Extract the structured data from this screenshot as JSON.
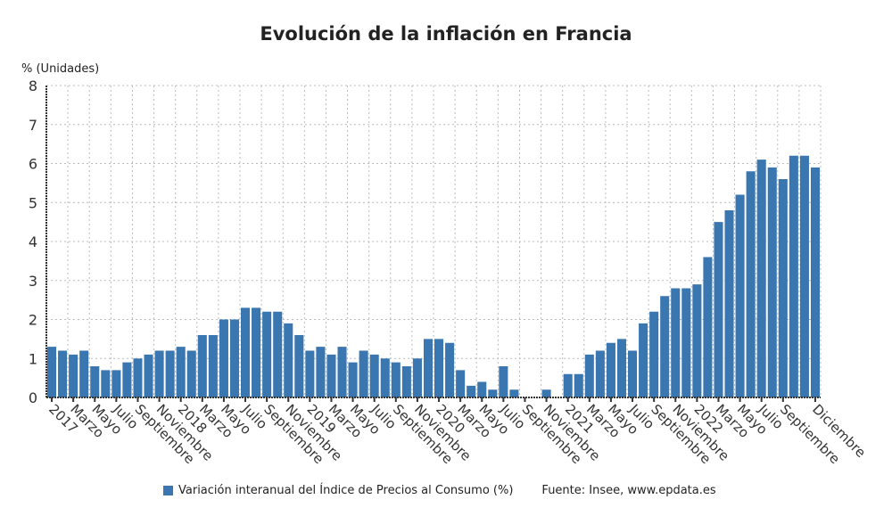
{
  "chart_data": {
    "type": "bar",
    "title": "Evolución de la inflación en Francia",
    "ylabel": "% (Unidades)",
    "ylim": [
      0,
      8
    ],
    "yticks": [
      0,
      1,
      2,
      3,
      4,
      5,
      6,
      7,
      8
    ],
    "grid": true,
    "color": "#3a76b0",
    "series": [
      {
        "name": "Variación interanual del Índice de Precios al Consumo (%)",
        "values": [
          1.3,
          1.2,
          1.1,
          1.2,
          0.8,
          0.7,
          0.7,
          0.9,
          1.0,
          1.1,
          1.2,
          1.2,
          1.3,
          1.2,
          1.6,
          1.6,
          2.0,
          2.0,
          2.3,
          2.3,
          2.2,
          2.2,
          1.9,
          1.6,
          1.2,
          1.3,
          1.1,
          1.3,
          0.9,
          1.2,
          1.1,
          1.0,
          0.9,
          0.8,
          1.0,
          1.5,
          1.5,
          1.4,
          0.7,
          0.3,
          0.4,
          0.2,
          0.8,
          0.2,
          0.0,
          0.0,
          0.2,
          0.0,
          0.6,
          0.6,
          1.1,
          1.2,
          1.4,
          1.5,
          1.2,
          1.9,
          2.2,
          2.6,
          2.8,
          2.8,
          2.9,
          3.6,
          4.5,
          4.8,
          5.2,
          5.8,
          6.1,
          5.9,
          5.6,
          6.2,
          6.2,
          5.9
        ]
      }
    ],
    "x_tick_labels": [
      {
        "index": 0,
        "label": "2017"
      },
      {
        "index": 2,
        "label": "Marzo"
      },
      {
        "index": 4,
        "label": "Mayo"
      },
      {
        "index": 6,
        "label": "Julio"
      },
      {
        "index": 8,
        "label": "Septiembre"
      },
      {
        "index": 10,
        "label": "Noviembre"
      },
      {
        "index": 12,
        "label": "2018"
      },
      {
        "index": 14,
        "label": "Marzo"
      },
      {
        "index": 16,
        "label": "Mayo"
      },
      {
        "index": 18,
        "label": "Julio"
      },
      {
        "index": 20,
        "label": "Septiembre"
      },
      {
        "index": 22,
        "label": "Noviembre"
      },
      {
        "index": 24,
        "label": "2019"
      },
      {
        "index": 26,
        "label": "Marzo"
      },
      {
        "index": 28,
        "label": "Mayo"
      },
      {
        "index": 30,
        "label": "Julio"
      },
      {
        "index": 32,
        "label": "Septiembre"
      },
      {
        "index": 34,
        "label": "Noviembre"
      },
      {
        "index": 36,
        "label": "2020"
      },
      {
        "index": 38,
        "label": "Marzo"
      },
      {
        "index": 40,
        "label": "Mayo"
      },
      {
        "index": 42,
        "label": "Julio"
      },
      {
        "index": 44,
        "label": "Septiembre"
      },
      {
        "index": 46,
        "label": "Noviembre"
      },
      {
        "index": 48,
        "label": "2021"
      },
      {
        "index": 50,
        "label": "Marzo"
      },
      {
        "index": 52,
        "label": "Mayo"
      },
      {
        "index": 54,
        "label": "Julio"
      },
      {
        "index": 56,
        "label": "Septiembre"
      },
      {
        "index": 58,
        "label": "Noviembre"
      },
      {
        "index": 60,
        "label": "2022"
      },
      {
        "index": 62,
        "label": "Marzo"
      },
      {
        "index": 64,
        "label": "Mayo"
      },
      {
        "index": 66,
        "label": "Julio"
      },
      {
        "index": 68,
        "label": "Septiembre"
      },
      {
        "index": 71,
        "label": "Diciembre"
      }
    ],
    "legend": "bottom",
    "source": "Fuente: Insee, www.epdata.es"
  }
}
